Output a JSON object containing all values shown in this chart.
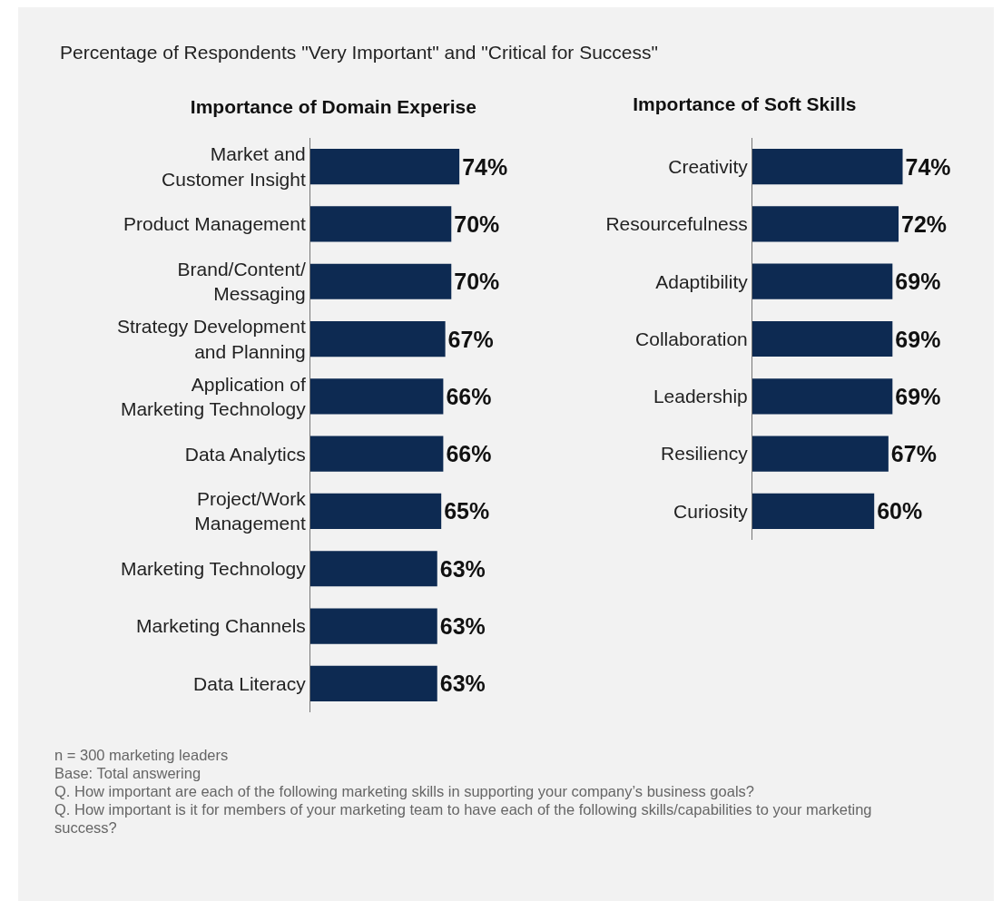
{
  "chart_data": [
    {
      "type": "bar",
      "orientation": "horizontal",
      "data_labels": true,
      "title": "Importance of Domain Experise",
      "color": "#0d2a52",
      "categories": [
        "Market and\nCustomer Insight",
        "Product Management",
        "Brand/Content/\nMessaging",
        "Strategy Development\nand Planning",
        "Application of\nMarketing Technology",
        "Data Analytics",
        "Project/Work\nManagement",
        "Marketing Technology",
        "Marketing Channels",
        "Data Literacy"
      ],
      "values": [
        74,
        70,
        70,
        67,
        66,
        66,
        65,
        63,
        63,
        63
      ],
      "value_labels": [
        "74%",
        "70%",
        "70%",
        "67%",
        "66%",
        "66%",
        "65%",
        "63%",
        "63%",
        "63%"
      ],
      "annotations": [
        "Percentage of Respondents \"Very Important\" and \"Critical for Success\"",
        "n = 300 marketing leaders",
        "Base: Total answering",
        "Q. How important are each of the following marketing skills in supporting your company’s business goals?",
        "Q. How important is it for members of your marketing team to have each of the following skills/capabilities to your marketing success?"
      ]
    },
    {
      "type": "bar",
      "orientation": "horizontal",
      "data_labels": true,
      "title": "Importance of Soft Skills",
      "color": "#0d2a52",
      "categories": [
        "Creativity",
        "Resourcefulness",
        "Adaptibility",
        "Collaboration",
        "Leadership",
        "Resiliency",
        "Curiosity"
      ],
      "values": [
        74,
        72,
        69,
        69,
        69,
        67,
        60
      ],
      "value_labels": [
        "74%",
        "72%",
        "69%",
        "69%",
        "69%",
        "67%",
        "60%"
      ]
    }
  ]
}
